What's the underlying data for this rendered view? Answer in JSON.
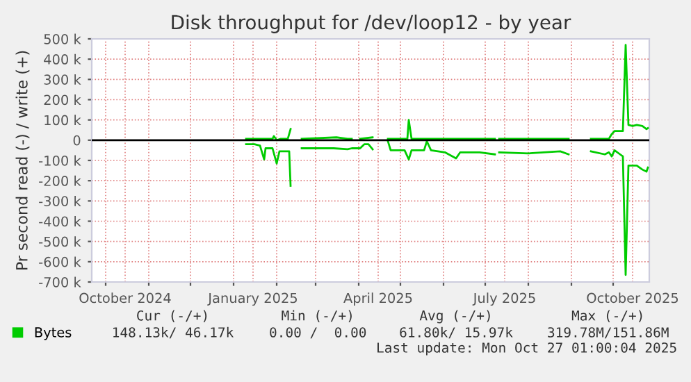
{
  "chart_data": {
    "type": "line",
    "title": "Disk throughput for /dev/loop12 - by year",
    "ylabel": "Pr second read (-) / write (+)",
    "series": [
      {
        "name": "Bytes",
        "color": "#00cc00",
        "x": [
          "2025-01-10",
          "2025-01-16",
          "2025-01-23",
          "2025-01-29",
          "2025-01-30",
          "2025-02-01",
          "2025-02-04",
          "2025-02-09",
          "2025-02-11",
          "2025-02-12",
          "2025-02-19",
          "2025-03-16",
          "2025-03-24",
          "2025-03-27",
          "2025-03-30",
          "2025-04-02",
          "2025-04-11",
          "2025-04-15",
          "2025-04-22",
          "2025-05-06",
          "2025-05-07",
          "2025-05-09",
          "2025-06-02",
          "2025-07-08",
          "2025-07-09",
          "2025-07-11",
          "2025-08-30",
          "2025-09-05",
          "2025-09-15",
          "2025-09-28",
          "2025-09-30",
          "2025-10-02",
          "2025-10-08",
          "2025-10-10",
          "2025-10-12",
          "2025-10-15",
          "2025-10-18",
          "2025-10-22",
          "2025-10-25",
          "2025-10-26"
        ],
        "values": [
          7000,
          7000,
          7000,
          7000,
          20000,
          0,
          7000,
          7000,
          55000,
          null,
          7000,
          14000,
          7000,
          7000,
          null,
          7000,
          14000,
          null,
          7000,
          7000,
          100000,
          7000,
          7000,
          7000,
          null,
          7000,
          7000,
          null,
          7000,
          7000,
          30000,
          45000,
          45000,
          470000,
          75000,
          70000,
          75000,
          70000,
          55000,
          60000
        ]
      },
      {
        "color": "#00cc00",
        "x": [
          "2025-01-10",
          "2025-01-16",
          "2025-01-20",
          "2025-01-23",
          "2025-01-24",
          "2025-01-29",
          "2025-02-01",
          "2025-02-03",
          "2025-02-10",
          "2025-02-11",
          "2025-02-12",
          "2025-02-19",
          "2025-03-14",
          "2025-03-24",
          "2025-03-27",
          "2025-04-02",
          "2025-04-05",
          "2025-04-08",
          "2025-04-11",
          "2025-04-15",
          "2025-04-22",
          "2025-04-24",
          "2025-05-04",
          "2025-05-07",
          "2025-05-09",
          "2025-05-18",
          "2025-05-20",
          "2025-05-23",
          "2025-06-02",
          "2025-06-10",
          "2025-06-13",
          "2025-06-27",
          "2025-07-08",
          "2025-07-09",
          "2025-07-11",
          "2025-08-01",
          "2025-08-24",
          "2025-08-30",
          "2025-09-05",
          "2025-09-15",
          "2025-09-25",
          "2025-09-28",
          "2025-09-30",
          "2025-10-02",
          "2025-10-06",
          "2025-10-08",
          "2025-10-10",
          "2025-10-12",
          "2025-10-18",
          "2025-10-22",
          "2025-10-25",
          "2025-10-26"
        ],
        "values": [
          -20000,
          -20000,
          -27000,
          -95000,
          -40000,
          -40000,
          -115000,
          -55000,
          -55000,
          -225000,
          null,
          -40000,
          -40000,
          -45000,
          -40000,
          -40000,
          -20000,
          -20000,
          -45000,
          null,
          -5000,
          -50000,
          -50000,
          -95000,
          -50000,
          -50000,
          -5000,
          -50000,
          -60000,
          -90000,
          -60000,
          -60000,
          -70000,
          null,
          -60000,
          -65000,
          -55000,
          -70000,
          null,
          -55000,
          -70000,
          -60000,
          -80000,
          -50000,
          -70000,
          -80000,
          -665000,
          -125000,
          -125000,
          -145000,
          -155000,
          -135000
        ]
      }
    ],
    "xlim": [
      "2024-09-21",
      "2025-10-27"
    ],
    "xticks": [
      {
        "value": "2024-10-01",
        "label": null
      },
      {
        "value": "2024-10-15",
        "label": "October 2024"
      },
      {
        "value": "2024-11-01",
        "label": null
      },
      {
        "value": "2024-12-01",
        "label": null
      },
      {
        "value": "2025-01-01",
        "label": null
      },
      {
        "value": "2025-01-15",
        "label": "January 2025"
      },
      {
        "value": "2025-02-01",
        "label": null
      },
      {
        "value": "2025-03-01",
        "label": null
      },
      {
        "value": "2025-04-01",
        "label": null
      },
      {
        "value": "2025-04-15",
        "label": "April 2025"
      },
      {
        "value": "2025-05-01",
        "label": null
      },
      {
        "value": "2025-06-01",
        "label": null
      },
      {
        "value": "2025-07-01",
        "label": null
      },
      {
        "value": "2025-07-15",
        "label": "July 2025"
      },
      {
        "value": "2025-08-01",
        "label": null
      },
      {
        "value": "2025-09-01",
        "label": null
      },
      {
        "value": "2025-10-01",
        "label": null
      },
      {
        "value": "2025-10-15",
        "label": "October 2025"
      }
    ],
    "ylim": [
      -700000,
      500000
    ],
    "yticks": [
      {
        "value": -700000,
        "label": "-700 k"
      },
      {
        "value": -600000,
        "label": "-600 k"
      },
      {
        "value": -500000,
        "label": "-500 k"
      },
      {
        "value": -400000,
        "label": "-400 k"
      },
      {
        "value": -300000,
        "label": "-300 k"
      },
      {
        "value": -200000,
        "label": "-200 k"
      },
      {
        "value": -100000,
        "label": "-100 k"
      },
      {
        "value": 0,
        "label": "0"
      },
      {
        "value": 100000,
        "label": "100 k"
      },
      {
        "value": 200000,
        "label": "200 k"
      },
      {
        "value": 300000,
        "label": "300 k"
      },
      {
        "value": 400000,
        "label": "400 k"
      },
      {
        "value": 500000,
        "label": "500 k"
      }
    ],
    "ref_lines": [
      {
        "axis": "y",
        "value": 0,
        "color": "#000000"
      }
    ],
    "grid": true,
    "legend": "bottom left",
    "marker": "none",
    "line_style": "solid",
    "annotations": [
      "Cur (-/+)",
      "Min (-/+)",
      "Avg (-/+)",
      "Max (-/+)",
      "148.13k/ 46.17k",
      "0.00 /  0.00",
      "61.80k/ 15.97k",
      "319.78M/151.86M",
      "Last update: Mon Oct 27 01:00:04 2025"
    ]
  }
}
